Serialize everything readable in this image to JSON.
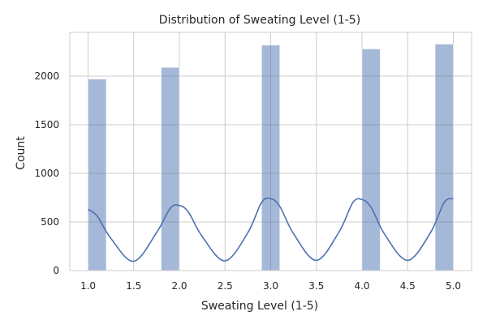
{
  "chart_data": {
    "type": "bar",
    "title": "Distribution of Sweating Level (1-5)",
    "xlabel": "Sweating Level (1-5)",
    "ylabel": "Count",
    "xlim": [
      0.8,
      5.2
    ],
    "ylim": [
      0,
      2450
    ],
    "x_ticks": [
      "1.0",
      "1.5",
      "2.0",
      "2.5",
      "3.0",
      "3.5",
      "4.0",
      "4.5",
      "5.0"
    ],
    "y_ticks": [
      "0",
      "500",
      "1000",
      "1500",
      "2000"
    ],
    "grid": true,
    "legend": "none",
    "series": [
      {
        "kind": "histogram",
        "color": "#4c72b0",
        "bins": [
          {
            "x0": 1.0,
            "x1": 1.2,
            "count": 1970
          },
          {
            "x0": 1.8,
            "x1": 2.0,
            "count": 2090
          },
          {
            "x0": 2.9,
            "x1": 3.1,
            "count": 2320
          },
          {
            "x0": 4.0,
            "x1": 4.2,
            "count": 2280
          },
          {
            "x0": 4.8,
            "x1": 5.0,
            "count": 2330
          }
        ]
      },
      {
        "kind": "kde-line",
        "color": "#4c72b0",
        "x": [
          1.0,
          1.1,
          1.25,
          1.5,
          1.75,
          1.9,
          2.0,
          2.1,
          2.25,
          2.5,
          2.75,
          2.9,
          3.0,
          3.1,
          3.25,
          3.5,
          3.75,
          3.9,
          4.0,
          4.1,
          4.25,
          4.5,
          4.75,
          4.9,
          5.0
        ],
        "y": [
          630,
          560,
          330,
          95,
          390,
          640,
          670,
          600,
          350,
          100,
          390,
          700,
          740,
          660,
          380,
          105,
          400,
          700,
          730,
          650,
          370,
          105,
          390,
          700,
          740
        ]
      }
    ]
  }
}
